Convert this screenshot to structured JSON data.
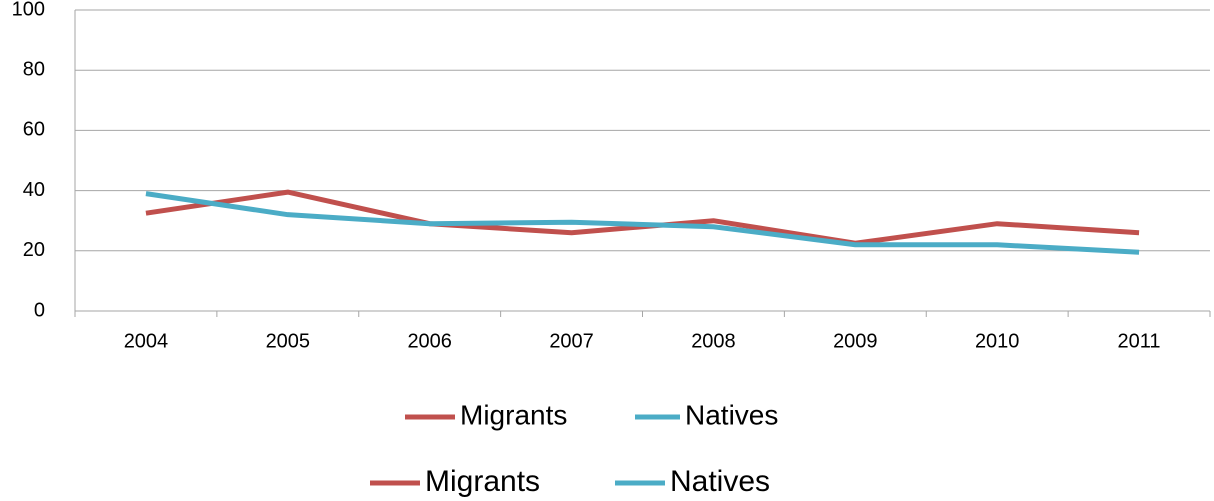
{
  "chart_data": {
    "type": "line",
    "categories": [
      "2004",
      "2005",
      "2006",
      "2007",
      "2008",
      "2009",
      "2010",
      "2011"
    ],
    "series": [
      {
        "name": "Migrants",
        "color": "#c0504d",
        "values": [
          32.5,
          39.5,
          29,
          26,
          30,
          22.5,
          29,
          26
        ]
      },
      {
        "name": "Natives",
        "color": "#4bacc6",
        "values": [
          39,
          32,
          29,
          29.5,
          28,
          22,
          22,
          19.5
        ]
      }
    ],
    "ylim": [
      0,
      100
    ],
    "yticks": [
      0,
      20,
      40,
      60,
      80,
      100
    ],
    "grid": true
  }
}
